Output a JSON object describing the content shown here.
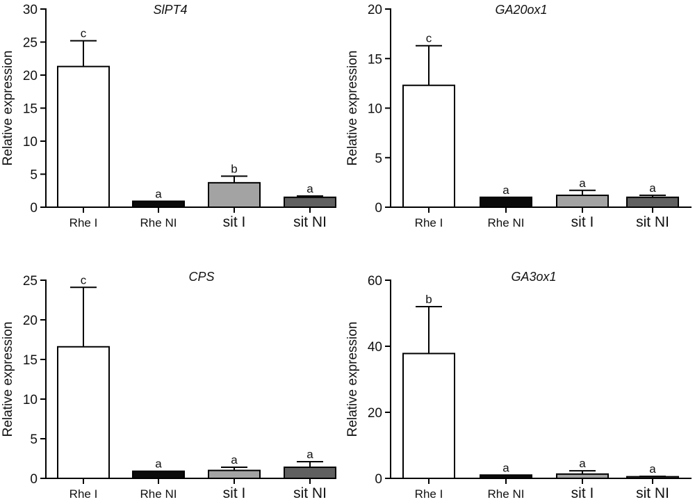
{
  "figure": {
    "ylabel": "Relative expression",
    "bar_colors": [
      "#ffffff",
      "#0a0a0a",
      "#a3a3a3",
      "#606060"
    ],
    "axis_color": "#000000"
  },
  "chart_data": [
    {
      "type": "bar",
      "title": "SlPT4",
      "ylabel": "Relative expression",
      "categories": [
        "Rhe I",
        "Rhe NI",
        "sit I",
        "sit NI"
      ],
      "values": [
        21.3,
        0.9,
        3.7,
        1.5
      ],
      "errors": [
        3.9,
        0.0,
        1.0,
        0.2
      ],
      "significance": [
        "c",
        "a",
        "b",
        "a"
      ],
      "ylim": [
        0,
        30
      ],
      "yticks": [
        0,
        5,
        10,
        15,
        20,
        25,
        30
      ]
    },
    {
      "type": "bar",
      "title": "GA20ox1",
      "ylabel": "Relative expression",
      "categories": [
        "Rhe I",
        "Rhe NI",
        "sit I",
        "sit NI"
      ],
      "values": [
        12.3,
        1.0,
        1.2,
        1.0
      ],
      "errors": [
        4.0,
        0.0,
        0.5,
        0.2
      ],
      "significance": [
        "c",
        "a",
        "a",
        "a"
      ],
      "ylim": [
        0,
        20
      ],
      "yticks": [
        0,
        5,
        10,
        15,
        20
      ]
    },
    {
      "type": "bar",
      "title": "CPS",
      "ylabel": "Relative expression",
      "categories": [
        "Rhe I",
        "Rhe NI",
        "sit I",
        "sit NI"
      ],
      "values": [
        16.6,
        0.9,
        1.0,
        1.4
      ],
      "errors": [
        7.5,
        0.0,
        0.4,
        0.7
      ],
      "significance": [
        "c",
        "a",
        "a",
        "a"
      ],
      "ylim": [
        0,
        25
      ],
      "yticks": [
        0,
        5,
        10,
        15,
        20,
        25
      ]
    },
    {
      "type": "bar",
      "title": "GA3ox1",
      "ylabel": "Relative expression",
      "categories": [
        "Rhe I",
        "Rhe NI",
        "sit I",
        "sit NI"
      ],
      "values": [
        37.8,
        1.0,
        1.3,
        0.5
      ],
      "errors": [
        14.2,
        0.0,
        1.0,
        0.1
      ],
      "significance": [
        "b",
        "a",
        "a",
        "a"
      ],
      "ylim": [
        0,
        60
      ],
      "yticks": [
        0,
        20,
        40,
        60
      ]
    }
  ]
}
